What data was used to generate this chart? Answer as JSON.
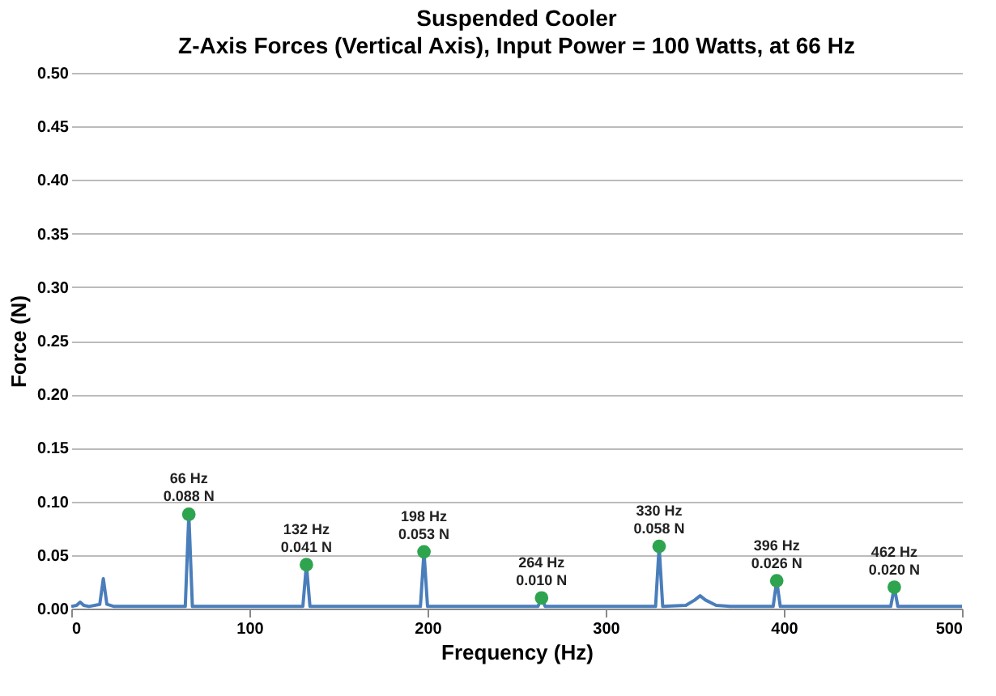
{
  "chart_data": {
    "type": "line",
    "title": "Suspended Cooler",
    "subtitle": "Z-Axis Forces (Vertical Axis), Input Power = 100 Watts, at 66 Hz",
    "xlabel": "Frequency (Hz)",
    "ylabel": "Force (N)",
    "xlim": [
      0,
      500
    ],
    "xticks": [
      0,
      100,
      200,
      300,
      400,
      500
    ],
    "ylim": [
      0,
      0.5
    ],
    "yticks": [
      {
        "value": 0,
        "label": "0.00"
      },
      {
        "value": 0.05,
        "label": "0.05"
      },
      {
        "value": 0.1,
        "label": "0.10"
      },
      {
        "value": 0.15,
        "label": "0.15"
      },
      {
        "value": 0.2,
        "label": "0.20"
      },
      {
        "value": 0.25,
        "label": "0.25"
      },
      {
        "value": 0.3,
        "label": "0.30"
      },
      {
        "value": 0.35,
        "label": "0.35"
      },
      {
        "value": 0.4,
        "label": "0.40"
      },
      {
        "value": 0.45,
        "label": "0.45"
      },
      {
        "value": 0.5,
        "label": "0.50"
      }
    ],
    "grid": "y",
    "series": [
      {
        "color": "#4a7ebb",
        "marker": "none",
        "line_style": "solid",
        "x": [
          0,
          3,
          5,
          7,
          10,
          16,
          18,
          20,
          24,
          64,
          66,
          68,
          130,
          132,
          134,
          196,
          198,
          200,
          262,
          264,
          266,
          328,
          330,
          332,
          345,
          350,
          353,
          356,
          362,
          370,
          394,
          396,
          398,
          460,
          462,
          464,
          500
        ],
        "values": [
          0.002,
          0.003,
          0.006,
          0.003,
          0.002,
          0.004,
          0.028,
          0.004,
          0.002,
          0.002,
          0.088,
          0.002,
          0.002,
          0.041,
          0.002,
          0.002,
          0.053,
          0.002,
          0.002,
          0.01,
          0.002,
          0.002,
          0.058,
          0.002,
          0.003,
          0.008,
          0.012,
          0.008,
          0.003,
          0.002,
          0.002,
          0.026,
          0.002,
          0.002,
          0.02,
          0.002,
          0.002
        ]
      },
      {
        "type": "scatter",
        "color": "#2ea44f",
        "marker": "circle",
        "x": [
          66,
          132,
          198,
          264,
          330,
          396,
          462
        ],
        "values": [
          0.088,
          0.041,
          0.053,
          0.01,
          0.058,
          0.026,
          0.02
        ],
        "value_labels": [
          "66 Hz\n0.088 N",
          "132 Hz\n0.041 N",
          "198 Hz\n0.053 N",
          "264 Hz\n0.010 N",
          "330 Hz\n0.058 N",
          "396 Hz\n0.026 N",
          "462 Hz\n0.020 N"
        ]
      }
    ]
  }
}
